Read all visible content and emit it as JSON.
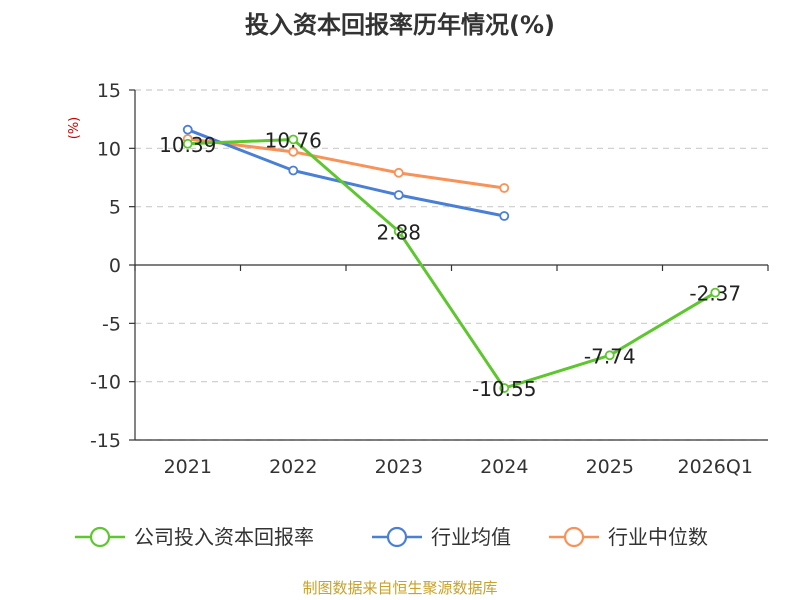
{
  "chart_data": {
    "type": "line",
    "title": "投入资本回报率历年情况(%)",
    "ylabel": "(%)",
    "categories": [
      "2021",
      "2022",
      "2023",
      "2024",
      "2025",
      "2026Q1"
    ],
    "ylim": [
      -15,
      15
    ],
    "yticks": [
      15,
      10,
      5,
      0,
      -5,
      -10,
      -15
    ],
    "grid": true,
    "series": [
      {
        "name": "公司投入资本回报率",
        "color": "#5ec62e",
        "values": [
          10.39,
          10.76,
          2.88,
          -10.55,
          -7.74,
          -2.37
        ],
        "labels": [
          "10.39",
          "10.76",
          "2.88",
          "-10.55",
          "-7.74",
          "-2.37"
        ]
      },
      {
        "name": "行业均值",
        "color": "#4a7fd6",
        "values": [
          11.6,
          8.1,
          6.0,
          4.2,
          null,
          null
        ],
        "labels": null
      },
      {
        "name": "行业中位数",
        "color": "#f79259",
        "values": [
          10.8,
          9.7,
          7.9,
          6.6,
          null,
          null
        ],
        "labels": null
      }
    ],
    "legend_position": "bottom",
    "source": "制图数据来自恒生聚源数据库"
  }
}
